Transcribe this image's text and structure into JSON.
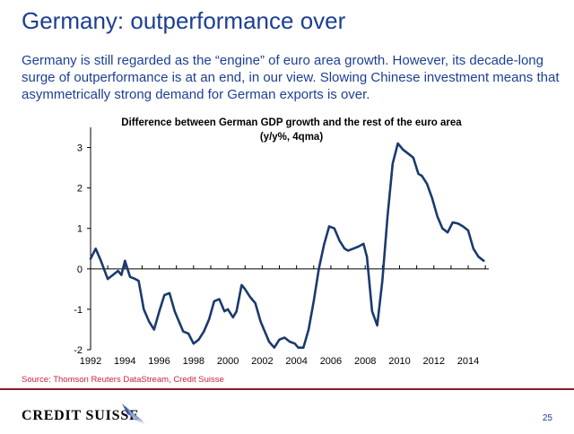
{
  "slide": {
    "title": "Germany: outperformance over",
    "subtitle": "Germany is still regarded as the “engine” of euro area growth. However, its decade-long surge of outperformance is at an end, in our view. Slowing Chinese investment means that asymmetrically strong demand for German exports is over.",
    "source": "Source: Thomson Reuters DataStream, Credit Suisse",
    "brand": "CREDIT SUISSE",
    "page_number": "25"
  },
  "colors": {
    "title": "#1c3f94",
    "series": "#1a3a6e",
    "source": "#c8233c",
    "rule": "#8a1d2f"
  },
  "chart_data": {
    "type": "line",
    "title": "Difference between German GDP growth and the rest of the euro area",
    "subtitle": "(y/y%, 4qma)",
    "xlabel": "",
    "ylabel": "",
    "xlim": [
      1992,
      2015.2
    ],
    "ylim": [
      -2,
      3.5
    ],
    "x_ticks": [
      "1992",
      "1994",
      "1996",
      "1998",
      "2000",
      "2002",
      "2004",
      "2006",
      "2008",
      "2010",
      "2012",
      "2014"
    ],
    "y_ticks": [
      "3",
      "2",
      "1",
      "0",
      "-1",
      "-2"
    ],
    "grid": false,
    "legend": "none",
    "series": [
      {
        "x": [
          1992.0,
          1992.3,
          1992.6,
          1993.0,
          1993.3,
          1993.6,
          1993.8,
          1994.0,
          1994.3,
          1994.6,
          1994.8,
          1995.1,
          1995.4,
          1995.7,
          1996.0,
          1996.3,
          1996.6,
          1996.9,
          1997.1,
          1997.4,
          1997.7,
          1998.0,
          1998.3,
          1998.6,
          1998.9,
          1999.2,
          1999.5,
          1999.8,
          2000.0,
          2000.3,
          2000.5,
          2000.8,
          2001.0,
          2001.3,
          2001.6,
          2001.9,
          2002.1,
          2002.4,
          2002.7,
          2003.0,
          2003.3,
          2003.6,
          2003.9,
          2004.1,
          2004.4,
          2004.7,
          2005.0,
          2005.3,
          2005.6,
          2005.9,
          2006.2,
          2006.5,
          2006.8,
          2007.0,
          2007.3,
          2007.6,
          2007.9,
          2008.1,
          2008.4,
          2008.7,
          2009.0,
          2009.3,
          2009.6,
          2009.9,
          2010.2,
          2010.5,
          2010.8,
          2011.1,
          2011.3,
          2011.6,
          2011.9,
          2012.2,
          2012.5,
          2012.8,
          2013.1,
          2013.4,
          2013.7,
          2014.0,
          2014.3,
          2014.6,
          2014.9
        ],
        "values": [
          0.25,
          0.5,
          0.2,
          -0.25,
          -0.15,
          -0.05,
          -0.15,
          0.2,
          -0.2,
          -0.25,
          -0.3,
          -1.0,
          -1.3,
          -1.5,
          -1.05,
          -0.65,
          -0.6,
          -1.05,
          -1.25,
          -1.55,
          -1.6,
          -1.85,
          -1.75,
          -1.55,
          -1.25,
          -0.8,
          -0.75,
          -1.05,
          -1.0,
          -1.2,
          -1.05,
          -0.4,
          -0.5,
          -0.7,
          -0.85,
          -1.3,
          -1.5,
          -1.8,
          -1.95,
          -1.75,
          -1.7,
          -1.8,
          -1.85,
          -1.95,
          -1.95,
          -1.5,
          -0.8,
          0.0,
          0.6,
          1.05,
          1.0,
          0.7,
          0.5,
          0.45,
          0.5,
          0.55,
          0.62,
          0.3,
          -1.05,
          -1.4,
          -0.3,
          1.3,
          2.6,
          3.1,
          2.95,
          2.85,
          2.75,
          2.35,
          2.3,
          2.1,
          1.75,
          1.3,
          1.0,
          0.9,
          1.15,
          1.12,
          1.05,
          0.95,
          0.5,
          0.3,
          0.2
        ]
      }
    ]
  }
}
